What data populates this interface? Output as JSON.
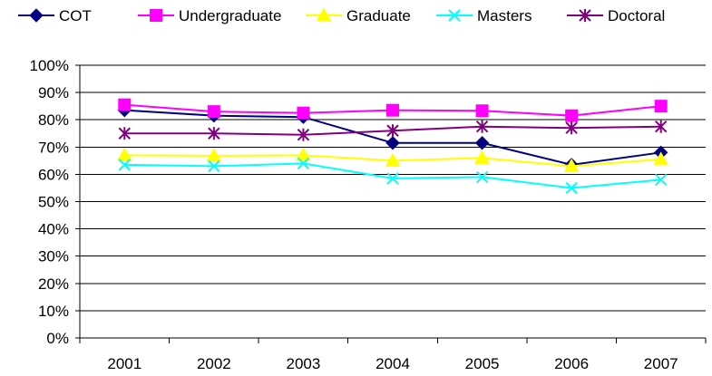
{
  "chart_data": {
    "type": "line",
    "title": "",
    "xlabel": "",
    "ylabel": "",
    "categories": [
      "2001",
      "2002",
      "2003",
      "2004",
      "2005",
      "2006",
      "2007"
    ],
    "ylim": [
      0,
      100
    ],
    "y_ticks": [
      "0%",
      "10%",
      "20%",
      "30%",
      "40%",
      "50%",
      "60%",
      "70%",
      "80%",
      "90%",
      "100%"
    ],
    "y_tick_values": [
      0,
      10,
      20,
      30,
      40,
      50,
      60,
      70,
      80,
      90,
      100
    ],
    "grid": "horizontal",
    "legend_position": "top",
    "series": [
      {
        "name": "COT",
        "color": "#000080",
        "marker": "diamond",
        "values": [
          83.5,
          81.5,
          81.0,
          71.5,
          71.5,
          63.5,
          68.0
        ]
      },
      {
        "name": "Undergraduate",
        "color": "#FF00FF",
        "marker": "square",
        "values": [
          85.5,
          83.0,
          82.5,
          83.5,
          83.3,
          81.5,
          85.0
        ]
      },
      {
        "name": "Graduate",
        "color": "#FFFF00",
        "marker": "triangle",
        "values": [
          67.0,
          66.8,
          67.0,
          65.0,
          66.0,
          63.0,
          65.5
        ]
      },
      {
        "name": "Masters",
        "color": "#00FFFF",
        "marker": "x",
        "values": [
          63.5,
          63.0,
          64.0,
          58.5,
          59.0,
          55.0,
          58.0
        ]
      },
      {
        "name": "Doctoral",
        "color": "#800080",
        "marker": "star",
        "values": [
          75.0,
          75.0,
          74.5,
          76.0,
          77.5,
          77.0,
          77.5
        ]
      }
    ]
  }
}
